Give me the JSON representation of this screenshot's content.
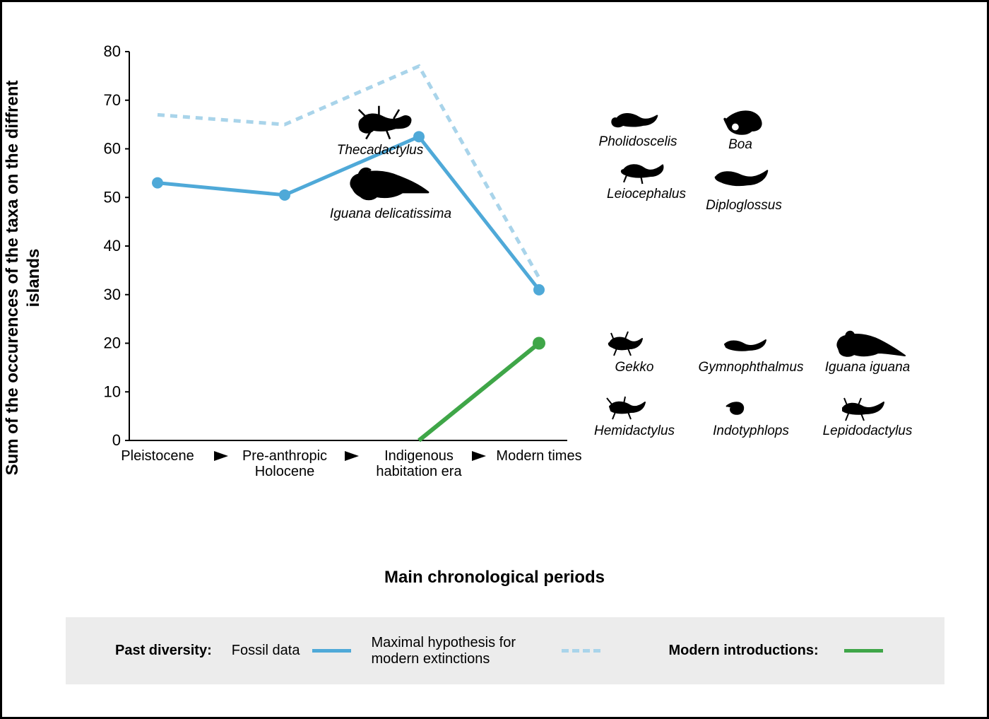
{
  "chart": {
    "type": "line",
    "y_label": "Sum of the occurences of the taxa on the diffrent islands",
    "x_label": "Main chronological periods",
    "ylim": [
      0,
      80
    ],
    "ytick_step": 10,
    "yticks": [
      0,
      10,
      20,
      30,
      40,
      50,
      60,
      70,
      80
    ],
    "x_categories": [
      "Pleistocene",
      "Pre-anthropic Holocene",
      "Indigenous habitation era",
      "Modern times"
    ],
    "background_color": "#ffffff",
    "axis_color": "#000000",
    "label_fontsize": 22,
    "title_fontsize": 24,
    "series": {
      "fossil": {
        "label": "Fossil data",
        "color": "#4fa9d8",
        "line_width": 5,
        "marker": "circle",
        "marker_size": 8,
        "values": [
          53,
          50.5,
          62.5,
          31
        ]
      },
      "max_hypothesis": {
        "label": "Maximal hypothesis for modern extinctions",
        "color": "#a9d4ea",
        "line_width": 5,
        "dash": "10,8",
        "marker": "none",
        "values": [
          67,
          65,
          77,
          33.5
        ]
      },
      "modern_intro": {
        "label": "Modern introductions:",
        "color": "#3fa648",
        "line_width": 6,
        "marker": "circle-last",
        "marker_size": 9,
        "values": [
          null,
          null,
          0,
          20
        ]
      }
    },
    "annotations_mid": [
      {
        "name": "Thecadactylus",
        "icon": "gecko"
      },
      {
        "name": "Iguana delicatissima",
        "icon": "iguana"
      }
    ],
    "annotations_upper_right": [
      {
        "name": "Pholidoscelis",
        "icon": "lizard"
      },
      {
        "name": "Boa",
        "icon": "snake"
      },
      {
        "name": "Leiocephalus",
        "icon": "lizard2"
      },
      {
        "name": "Diploglossus",
        "icon": "skink"
      }
    ],
    "annotations_lower_right": [
      {
        "name": "Gekko",
        "icon": "gecko2"
      },
      {
        "name": "Gymnophthalmus",
        "icon": "skink2"
      },
      {
        "name": "Iguana iguana",
        "icon": "iguana2"
      },
      {
        "name": "Hemidactylus",
        "icon": "gecko3"
      },
      {
        "name": "Indotyphlops",
        "icon": "worm"
      },
      {
        "name": "Lepidodactylus",
        "icon": "gecko4"
      }
    ]
  },
  "legend": {
    "group1_title": "Past diversity:",
    "item1": "Fossil data",
    "item2": "Maximal hypothesis for modern extinctions",
    "group2_title": "Modern introductions:"
  }
}
